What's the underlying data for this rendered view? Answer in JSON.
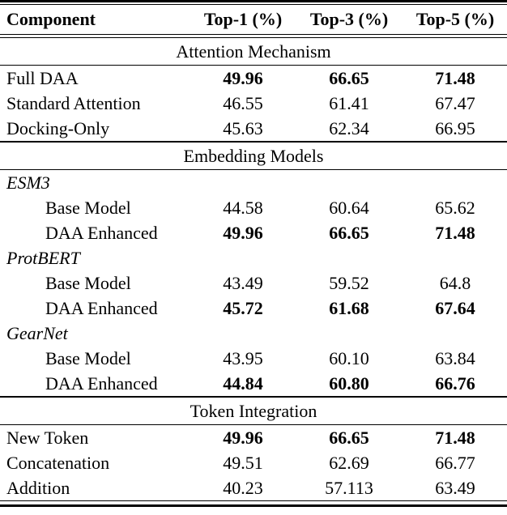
{
  "colors": {
    "text": "#000000",
    "background": "#ffffff",
    "rule": "#000000"
  },
  "table": {
    "columns": [
      "Component",
      "Top-1 (%)",
      "Top-3 (%)",
      "Top-5 (%)"
    ],
    "sections": [
      {
        "title": "Attention Mechanism",
        "rows": [
          {
            "label": "Full DAA",
            "values": [
              "49.96",
              "66.65",
              "71.48"
            ],
            "bold_values": true,
            "indent": false,
            "italic": false
          },
          {
            "label": "Standard Attention",
            "values": [
              "46.55",
              "61.41",
              "67.47"
            ],
            "bold_values": false,
            "indent": false,
            "italic": false
          },
          {
            "label": "Docking-Only",
            "values": [
              "45.63",
              "62.34",
              "66.95"
            ],
            "bold_values": false,
            "indent": false,
            "italic": false
          }
        ]
      },
      {
        "title": "Embedding Models",
        "rows": [
          {
            "label": "ESM3",
            "values": [
              "",
              "",
              ""
            ],
            "bold_values": false,
            "indent": false,
            "italic": true
          },
          {
            "label": "Base Model",
            "values": [
              "44.58",
              "60.64",
              "65.62"
            ],
            "bold_values": false,
            "indent": true,
            "italic": false
          },
          {
            "label": "DAA Enhanced",
            "values": [
              "49.96",
              "66.65",
              "71.48"
            ],
            "bold_values": true,
            "indent": true,
            "italic": false
          },
          {
            "label": "ProtBERT",
            "values": [
              "",
              "",
              ""
            ],
            "bold_values": false,
            "indent": false,
            "italic": true
          },
          {
            "label": "Base Model",
            "values": [
              "43.49",
              "59.52",
              "64.8"
            ],
            "bold_values": false,
            "indent": true,
            "italic": false
          },
          {
            "label": "DAA Enhanced",
            "values": [
              "45.72",
              "61.68",
              "67.64"
            ],
            "bold_values": true,
            "indent": true,
            "italic": false
          },
          {
            "label": "GearNet",
            "values": [
              "",
              "",
              ""
            ],
            "bold_values": false,
            "indent": false,
            "italic": true
          },
          {
            "label": "Base Model",
            "values": [
              "43.95",
              "60.10",
              "63.84"
            ],
            "bold_values": false,
            "indent": true,
            "italic": false
          },
          {
            "label": "DAA Enhanced",
            "values": [
              "44.84",
              "60.80",
              "66.76"
            ],
            "bold_values": true,
            "indent": true,
            "italic": false
          }
        ]
      },
      {
        "title": "Token Integration",
        "rows": [
          {
            "label": "New Token",
            "values": [
              "49.96",
              "66.65",
              "71.48"
            ],
            "bold_values": true,
            "indent": false,
            "italic": false
          },
          {
            "label": "Concatenation",
            "values": [
              "49.51",
              "62.69",
              "66.77"
            ],
            "bold_values": false,
            "indent": false,
            "italic": false
          },
          {
            "label": "Addition",
            "values": [
              "40.23",
              "57.113",
              "63.49"
            ],
            "bold_values": false,
            "indent": false,
            "italic": false
          }
        ]
      }
    ]
  }
}
